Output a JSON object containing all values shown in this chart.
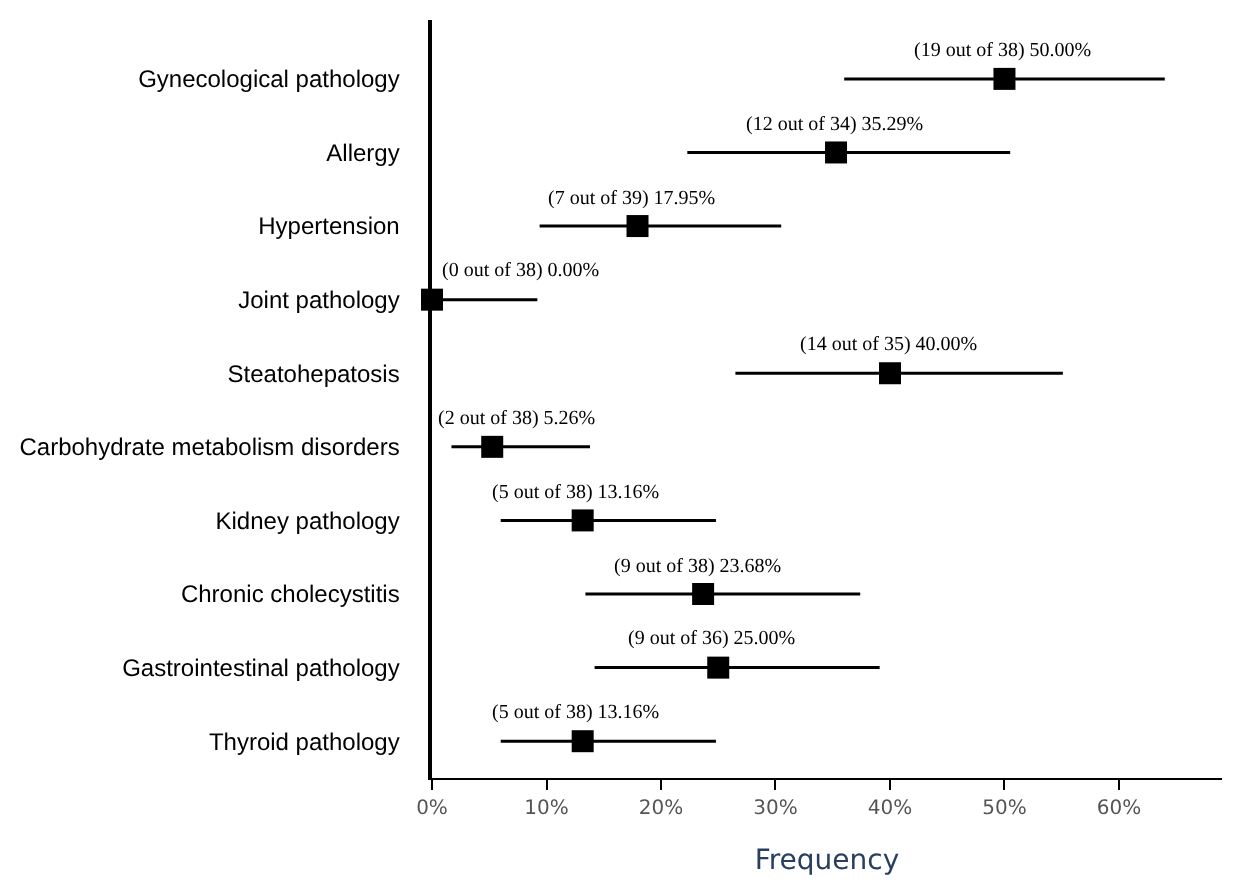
{
  "chart_data": {
    "type": "scatter",
    "orientation": "horizontal",
    "xlabel": "Frequency",
    "categories": [
      "Gynecological pathology",
      "Allergy",
      "Hypertension",
      "Joint pathology",
      "Steatohepatosis",
      "Carbohydrate metabolism disorders",
      "Kidney pathology",
      "Chronic cholecystitis",
      "Gastrointestinal pathology",
      "Thyroid pathology"
    ],
    "series": [
      {
        "color": "#000000",
        "values": [
          50.0,
          35.29,
          17.95,
          0.0,
          40.0,
          5.26,
          13.16,
          23.68,
          25.0,
          13.16
        ],
        "errors": [
          [
            36,
            64
          ],
          [
            22.3,
            50.5
          ],
          [
            9.4,
            30.5
          ],
          [
            0,
            9.2
          ],
          [
            26.5,
            55.1
          ],
          [
            1.7,
            13.8
          ],
          [
            6.0,
            24.8
          ],
          [
            13.4,
            37.4
          ],
          [
            14.2,
            39.1
          ],
          [
            6.0,
            24.8
          ]
        ],
        "value_labels": [
          "(19 out of 38) 50.00%",
          "(12 out of 34) 35.29%",
          "(7 out of 39) 17.95%",
          "(0 out of 38) 0.00%",
          "(14 out of 35) 40.00%",
          "(2 out of 38) 5.26%",
          "(5 out of 38) 13.16%",
          "(9 out of 38) 23.68%",
          "(9 out of 36) 25.00%",
          "(5 out of 38) 13.16%"
        ]
      }
    ],
    "xlim": [
      0,
      69
    ],
    "xticks": [
      {
        "value": 0,
        "label": "0%"
      },
      {
        "value": 10,
        "label": "10%"
      },
      {
        "value": 20,
        "label": "20%"
      },
      {
        "value": 30,
        "label": "30%"
      },
      {
        "value": 40,
        "label": "40%"
      },
      {
        "value": 50,
        "label": "50%"
      },
      {
        "value": 60,
        "label": "60%"
      }
    ],
    "marker": "square"
  }
}
